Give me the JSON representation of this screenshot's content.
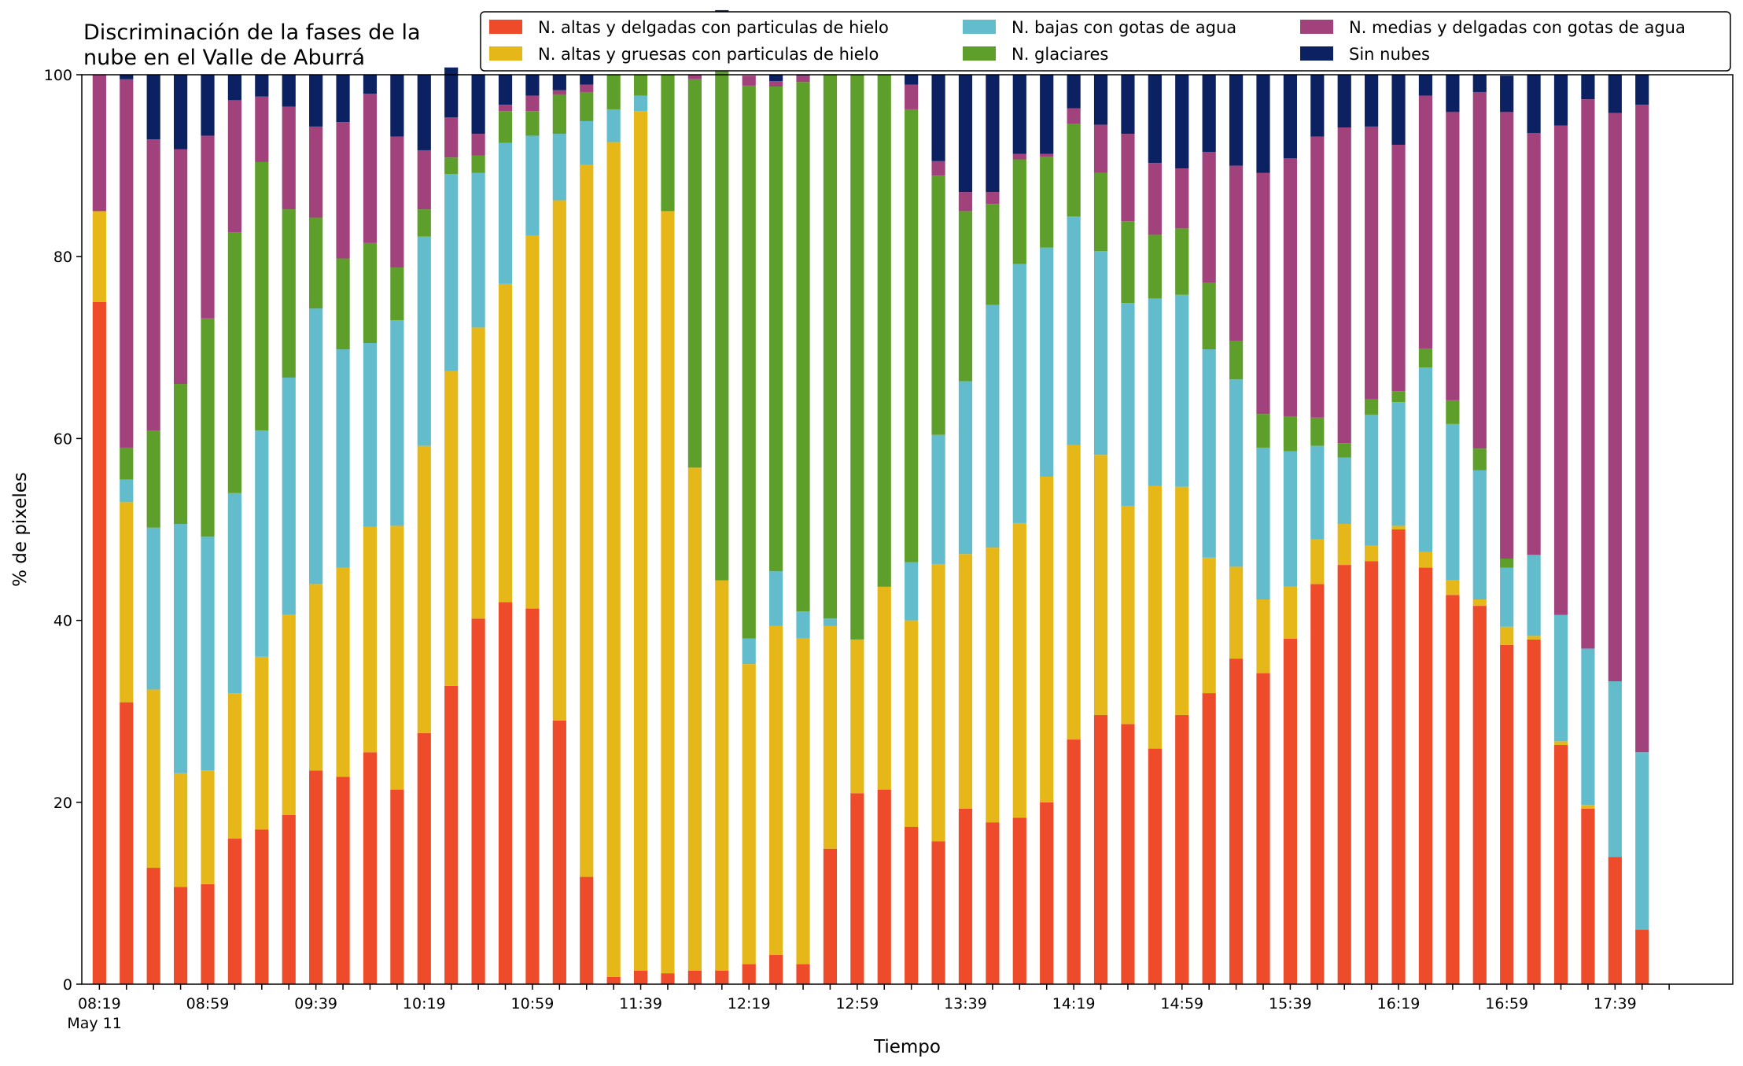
{
  "chart_data": {
    "type": "bar",
    "stacked": true,
    "title": "Discriminación de la fases de la\nnube en el Valle de Aburrá",
    "xlabel": "Tiempo",
    "ylabel": "% de pixeles",
    "ylim": [
      0,
      100
    ],
    "yticks": [
      "0",
      "20",
      "40",
      "60",
      "80",
      "100"
    ],
    "date_label": "May 11",
    "grid": false,
    "legend_position": "top-right",
    "categories": [
      "08:19",
      "08:29",
      "08:39",
      "08:49",
      "08:59",
      "09:09",
      "09:19",
      "09:29",
      "09:39",
      "09:49",
      "09:59",
      "10:09",
      "10:19",
      "10:29",
      "10:39",
      "10:49",
      "10:59",
      "11:09",
      "11:19",
      "11:29",
      "11:39",
      "11:49",
      "11:59",
      "12:09",
      "12:19",
      "12:29",
      "12:39",
      "12:49",
      "12:59",
      "13:09",
      "13:19",
      "13:29",
      "13:39",
      "13:49",
      "13:59",
      "14:09",
      "14:19",
      "14:29",
      "14:39",
      "14:49",
      "14:59",
      "15:09",
      "15:19",
      "15:29",
      "15:39",
      "15:49",
      "15:59",
      "16:09",
      "16:19",
      "16:29",
      "16:39",
      "16:49",
      "16:59",
      "17:09",
      "17:19",
      "17:29",
      "17:39",
      "17:49"
    ],
    "xtick_labels": [
      "08:19",
      "",
      "",
      "",
      "08:59",
      "",
      "",
      "",
      "09:39",
      "",
      "",
      "",
      "10:19",
      "",
      "",
      "",
      "10:59",
      "",
      "",
      "",
      "11:39",
      "",
      "",
      "",
      "12:19",
      "",
      "",
      "",
      "12:59",
      "",
      "",
      "",
      "13:39",
      "",
      "",
      "",
      "14:19",
      "",
      "",
      "",
      "14:59",
      "",
      "",
      "",
      "15:39",
      "",
      "",
      "",
      "16:19",
      "",
      "",
      "",
      "16:59",
      "",
      "",
      "",
      "17:39",
      "",
      ""
    ],
    "series": [
      {
        "name": "N. altas y delgadas con particulas de hielo",
        "color": "#ee4b2b",
        "values": [
          75,
          31,
          12.8,
          10.7,
          11,
          16,
          17,
          18.6,
          23.5,
          22.8,
          25.5,
          21.4,
          27.6,
          32.8,
          40.2,
          42,
          41.3,
          29,
          11.8,
          0.8,
          1.5,
          1.2,
          1.5,
          1.5,
          2.2,
          3.2,
          2.2,
          14.9,
          21,
          21.4,
          17.3,
          15.7,
          19.3,
          17.8,
          18.3,
          20,
          26.9,
          29.6,
          28.6,
          25.9,
          29.6,
          32,
          35.8,
          34.2,
          38,
          44,
          46.1,
          46.5,
          50,
          45.8,
          42.8,
          41.6,
          37.3,
          37.9,
          26.3,
          19.3,
          14,
          6
        ]
      },
      {
        "name": "N. altas y gruesas con particulas de hielo",
        "color": "#e6b719",
        "values": [
          10,
          22,
          19.6,
          12.5,
          12.5,
          16,
          19,
          22,
          20.5,
          23,
          24.8,
          29,
          31.6,
          34.6,
          32,
          35,
          41,
          57.2,
          78.3,
          91.8,
          94.5,
          83.8,
          55.3,
          42.9,
          33,
          36.2,
          35.8,
          24.5,
          16.9,
          22.3,
          22.7,
          30.5,
          28,
          30.2,
          32.4,
          35.8,
          32.4,
          28.6,
          24,
          28.9,
          25.1,
          14.9,
          10.1,
          8.1,
          5.7,
          4.9,
          4.5,
          1.7,
          0.4,
          1.7,
          1.6,
          0.7,
          2,
          0.4,
          0.4,
          0.4,
          0,
          0
        ]
      },
      {
        "name": "N. bajas con gotas de agua",
        "color": "#62bccb",
        "values": [
          0,
          2.5,
          17.8,
          27.4,
          25.7,
          22,
          24.9,
          26.1,
          30.3,
          24,
          20.2,
          22.6,
          23,
          21.7,
          17,
          15.5,
          11,
          7.3,
          4.8,
          3.6,
          1.7,
          0,
          0,
          0,
          2.8,
          6,
          3,
          0.8,
          0,
          0,
          6.4,
          14.2,
          19,
          26.7,
          28.5,
          25.2,
          25.1,
          22.4,
          22.3,
          20.6,
          21.1,
          22.9,
          20.6,
          16.7,
          14.9,
          10.3,
          7.3,
          14.4,
          13.6,
          20.3,
          17.2,
          14.2,
          6.5,
          8.9,
          13.9,
          17.2,
          19.3,
          19.5
        ]
      },
      {
        "name": "N. glaciares",
        "color": "#5d9f2a",
        "values": [
          0,
          3.5,
          10.7,
          15.4,
          24,
          28.7,
          29.5,
          18.5,
          10,
          10,
          11,
          5.8,
          3,
          1.8,
          1.9,
          3.5,
          2.7,
          4.3,
          3.2,
          3.8,
          2.3,
          15,
          42.7,
          61.2,
          60.8,
          53.3,
          58.2,
          59.8,
          62.1,
          56.3,
          49.8,
          28.5,
          18.7,
          11.1,
          11.5,
          10,
          10.2,
          8.6,
          9,
          7,
          7.3,
          7.3,
          4.2,
          3.7,
          3.8,
          3.1,
          1.6,
          1.7,
          1.2,
          2.1,
          2.6,
          2.4,
          1,
          0,
          0,
          0,
          0,
          0
        ]
      },
      {
        "name": "N. medias y delgadas con gotas de agua",
        "color": "#a2427d",
        "values": [
          15,
          40.5,
          32,
          25.8,
          20.1,
          14.5,
          7.2,
          11.3,
          10,
          15,
          16.4,
          14.4,
          6.5,
          4.4,
          2.4,
          0.7,
          1.7,
          0.5,
          0.8,
          0,
          0,
          0,
          0.5,
          0.8,
          1.1,
          0.6,
          0.7,
          0,
          0,
          0,
          2.7,
          1.6,
          2.1,
          1.3,
          0.6,
          0.3,
          1.7,
          5.3,
          9.6,
          7.9,
          6.6,
          14.4,
          19.3,
          26.5,
          28.4,
          30.9,
          34.7,
          30,
          27.1,
          27.8,
          31.7,
          39.2,
          49.1,
          46.4,
          53.8,
          60.4,
          62.5,
          71.2
        ]
      },
      {
        "name": "Sin nubes",
        "color": "#0c2161",
        "values": [
          0,
          0.5,
          7.1,
          8.2,
          6.7,
          2.8,
          2.4,
          3.5,
          5.7,
          5.2,
          2.1,
          6.8,
          8.3,
          5.5,
          6.5,
          3.3,
          2.3,
          1.7,
          1.1,
          0,
          0,
          0,
          0,
          0.7,
          0,
          0.7,
          0.1,
          0,
          0,
          0,
          1.1,
          9.5,
          12.9,
          12.9,
          8.7,
          8.7,
          3.7,
          5.5,
          6.5,
          9.7,
          10.3,
          8.5,
          10,
          10.8,
          9.2,
          6.8,
          5.8,
          5.7,
          7.7,
          2.3,
          4.1,
          1.9,
          4,
          6.4,
          5.6,
          2.7,
          4.2,
          3.3
        ]
      }
    ]
  }
}
